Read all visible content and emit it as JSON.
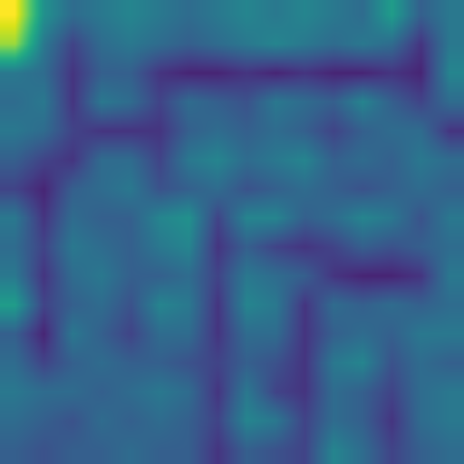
{
  "chart_data": {
    "type": "heatmap",
    "tick_labels": false,
    "zlim": [
      0,
      1
    ],
    "cells": [
      [
        1.0,
        0.5,
        0.35,
        0.4,
        0.45,
        0.4,
        0.35,
        0.4,
        0.45,
        0.4,
        0.45,
        0.4,
        0.35,
        0.55,
        0.3,
        0.4
      ],
      [
        0.85,
        0.4,
        0.2,
        0.35,
        0.4,
        0.35,
        0.3,
        0.35,
        0.4,
        0.45,
        0.4,
        0.35,
        0.4,
        0.35,
        0.15,
        0.4
      ],
      [
        0.4,
        0.35,
        0.15,
        0.3,
        0.3,
        0.15,
        0.1,
        0.1,
        0.15,
        0.1,
        0.15,
        0.1,
        0.1,
        0.15,
        0.1,
        0.45
      ],
      [
        0.35,
        0.4,
        0.15,
        0.4,
        0.35,
        0.2,
        0.35,
        0.3,
        0.25,
        0.4,
        0.35,
        0.3,
        0.45,
        0.3,
        0.2,
        0.35
      ],
      [
        0.4,
        0.35,
        0.2,
        0.15,
        0.15,
        0.15,
        0.3,
        0.35,
        0.3,
        0.35,
        0.3,
        0.2,
        0.3,
        0.35,
        0.35,
        0.15
      ],
      [
        0.3,
        0.2,
        0.15,
        0.35,
        0.35,
        0.2,
        0.4,
        0.45,
        0.35,
        0.4,
        0.45,
        0.3,
        0.35,
        0.3,
        0.4,
        0.35
      ],
      [
        0.2,
        0.1,
        0.3,
        0.35,
        0.4,
        0.25,
        0.3,
        0.35,
        0.25,
        0.3,
        0.35,
        0.3,
        0.25,
        0.3,
        0.35,
        0.3
      ],
      [
        0.4,
        0.15,
        0.35,
        0.3,
        0.3,
        0.45,
        0.5,
        0.2,
        0.45,
        0.45,
        0.3,
        0.35,
        0.45,
        0.4,
        0.25,
        0.4
      ],
      [
        0.35,
        0.2,
        0.4,
        0.35,
        0.3,
        0.4,
        0.45,
        0.15,
        0.3,
        0.2,
        0.15,
        0.2,
        0.3,
        0.25,
        0.3,
        0.35
      ],
      [
        0.4,
        0.15,
        0.35,
        0.4,
        0.3,
        0.3,
        0.35,
        0.2,
        0.4,
        0.35,
        0.3,
        0.15,
        0.1,
        0.1,
        0.15,
        0.4
      ],
      [
        0.55,
        0.2,
        0.3,
        0.35,
        0.25,
        0.45,
        0.4,
        0.15,
        0.45,
        0.4,
        0.15,
        0.35,
        0.3,
        0.35,
        0.3,
        0.35
      ],
      [
        0.3,
        0.1,
        0.4,
        0.3,
        0.2,
        0.35,
        0.35,
        0.15,
        0.35,
        0.35,
        0.15,
        0.3,
        0.35,
        0.3,
        0.4,
        0.4
      ],
      [
        0.35,
        0.2,
        0.3,
        0.35,
        0.3,
        0.3,
        0.25,
        0.2,
        0.3,
        0.25,
        0.15,
        0.4,
        0.45,
        0.25,
        0.35,
        0.3
      ],
      [
        0.4,
        0.35,
        0.35,
        0.3,
        0.35,
        0.4,
        0.35,
        0.15,
        0.4,
        0.2,
        0.15,
        0.35,
        0.3,
        0.2,
        0.35,
        0.4
      ],
      [
        0.35,
        0.3,
        0.25,
        0.35,
        0.3,
        0.35,
        0.3,
        0.2,
        0.45,
        0.4,
        0.2,
        0.35,
        0.3,
        0.15,
        0.35,
        0.4
      ],
      [
        0.3,
        0.25,
        0.3,
        0.3,
        0.35,
        0.3,
        0.3,
        0.15,
        0.3,
        0.25,
        0.2,
        0.45,
        0.35,
        0.2,
        0.3,
        0.35
      ]
    ]
  }
}
